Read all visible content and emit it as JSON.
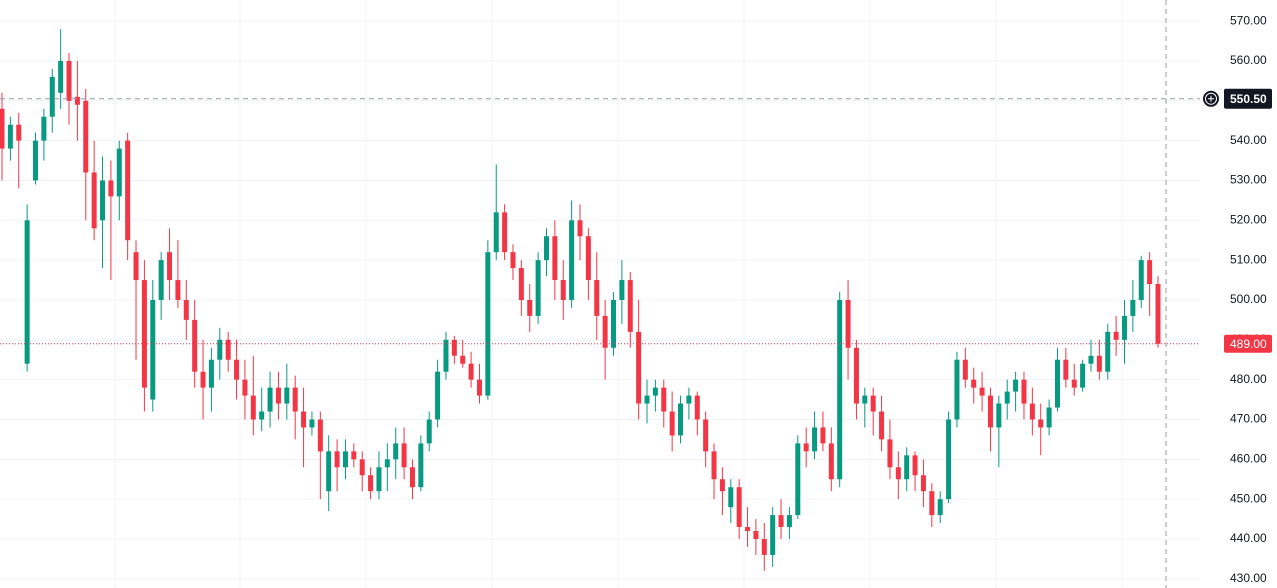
{
  "chart_data": {
    "type": "candlestick",
    "up_color": "#089981",
    "down_color": "#f23645",
    "open": [
      548,
      538,
      544,
      484,
      530,
      540,
      546,
      552,
      560,
      551,
      550,
      532,
      520,
      530,
      526,
      540,
      512,
      505,
      475,
      500,
      512,
      505,
      500,
      495,
      482,
      478,
      485,
      490,
      485,
      480,
      476,
      470,
      472,
      478,
      474,
      478,
      472,
      468,
      470,
      452,
      462,
      458,
      462,
      460,
      456,
      452,
      458,
      460,
      464,
      458,
      453,
      464,
      470,
      482,
      490,
      486,
      484,
      480,
      476,
      512,
      522,
      512,
      508,
      500,
      496,
      510,
      516,
      505,
      500,
      520,
      516,
      505,
      496,
      488,
      500,
      505,
      492,
      474,
      476,
      478,
      472,
      466,
      474,
      476,
      470,
      462,
      455,
      448,
      453,
      443,
      442,
      440,
      436,
      446,
      443,
      446,
      464,
      462,
      468,
      464,
      455,
      500,
      488,
      474,
      476,
      472,
      465,
      458,
      455,
      461,
      456,
      452,
      446,
      450,
      470,
      485,
      480,
      478,
      476,
      468,
      474,
      477,
      480,
      474,
      470,
      468,
      473,
      485,
      480,
      478,
      484,
      486,
      482,
      492,
      490,
      496,
      500,
      510,
      504
    ],
    "high": [
      552,
      546,
      547,
      524,
      542,
      548,
      558,
      568,
      562,
      560,
      553,
      540,
      536,
      535,
      540,
      542,
      515,
      510,
      505,
      512,
      518,
      515,
      505,
      500,
      490,
      488,
      493,
      492,
      490,
      485,
      486,
      478,
      482,
      482,
      484,
      481,
      478,
      472,
      472,
      466,
      465,
      465,
      464,
      462,
      458,
      462,
      464,
      468,
      468,
      460,
      466,
      472,
      485,
      492,
      491,
      490,
      487,
      484,
      515,
      534,
      524,
      514,
      510,
      504,
      512,
      518,
      520,
      510,
      525,
      524,
      518,
      512,
      500,
      502,
      510,
      507,
      500,
      480,
      480,
      480,
      477,
      476,
      478,
      477,
      472,
      464,
      458,
      455,
      455,
      448,
      445,
      444,
      448,
      450,
      448,
      466,
      468,
      472,
      472,
      468,
      502,
      505,
      490,
      478,
      478,
      476,
      470,
      462,
      463,
      462,
      460,
      454,
      452,
      472,
      487,
      488,
      483,
      482,
      478,
      476,
      480,
      482,
      482,
      478,
      474,
      475,
      488,
      488,
      484,
      485,
      490,
      490,
      494,
      496,
      500,
      505,
      511,
      512,
      506
    ],
    "low": [
      530,
      535,
      528,
      482,
      529,
      535,
      542,
      548,
      544,
      540,
      520,
      515,
      508,
      505,
      520,
      510,
      485,
      472,
      472,
      495,
      500,
      498,
      490,
      478,
      470,
      472,
      480,
      482,
      475,
      470,
      466,
      467,
      468,
      470,
      470,
      465,
      458,
      466,
      450,
      447,
      452,
      455,
      458,
      452,
      450,
      450,
      452,
      455,
      455,
      450,
      452,
      462,
      468,
      480,
      484,
      483,
      478,
      474,
      475,
      510,
      510,
      505,
      496,
      492,
      494,
      506,
      500,
      495,
      498,
      510,
      500,
      490,
      480,
      486,
      494,
      488,
      470,
      469,
      472,
      468,
      462,
      464,
      470,
      466,
      458,
      450,
      446,
      444,
      440,
      438,
      436,
      432,
      433,
      440,
      440,
      445,
      458,
      460,
      462,
      452,
      453,
      480,
      470,
      468,
      466,
      462,
      455,
      450,
      452,
      452,
      448,
      443,
      444,
      449,
      468,
      478,
      474,
      472,
      462,
      458,
      470,
      472,
      470,
      466,
      461,
      466,
      472,
      478,
      476,
      477,
      482,
      480,
      480,
      486,
      484,
      492,
      498,
      496,
      488
    ],
    "close": [
      538,
      544,
      540,
      520,
      540,
      546,
      556,
      560,
      550,
      549,
      532,
      518,
      530,
      526,
      538,
      515,
      505,
      478,
      500,
      510,
      505,
      500,
      495,
      482,
      478,
      485,
      490,
      485,
      480,
      476,
      470,
      472,
      478,
      474,
      478,
      472,
      468,
      470,
      462,
      462,
      458,
      462,
      460,
      456,
      452,
      458,
      460,
      464,
      458,
      453,
      464,
      470,
      482,
      490,
      486,
      484,
      480,
      476,
      512,
      522,
      512,
      508,
      500,
      496,
      510,
      516,
      505,
      500,
      520,
      516,
      505,
      496,
      488,
      500,
      505,
      492,
      474,
      476,
      478,
      472,
      466,
      474,
      476,
      470,
      462,
      455,
      452,
      453,
      443,
      442,
      440,
      436,
      446,
      443,
      446,
      464,
      462,
      468,
      464,
      455,
      500,
      488,
      474,
      476,
      472,
      465,
      458,
      455,
      461,
      456,
      452,
      446,
      450,
      470,
      485,
      480,
      478,
      476,
      468,
      474,
      477,
      480,
      474,
      470,
      468,
      473,
      485,
      480,
      478,
      484,
      486,
      482,
      492,
      490,
      496,
      500,
      510,
      504,
      489
    ],
    "ylim": [
      427.7,
      575.3
    ],
    "yticks": [
      {
        "value": 430,
        "label": "430.00"
      },
      {
        "value": 440,
        "label": "440.00"
      },
      {
        "value": 450,
        "label": "450.00"
      },
      {
        "value": 460,
        "label": "460.00"
      },
      {
        "value": 470,
        "label": "470.00"
      },
      {
        "value": 480,
        "label": "480.00"
      },
      {
        "value": 490,
        "label": "490.00"
      },
      {
        "value": 500,
        "label": "500.00"
      },
      {
        "value": 510,
        "label": "510.00"
      },
      {
        "value": 520,
        "label": "520.00"
      },
      {
        "value": 530,
        "label": "530.00"
      },
      {
        "value": 540,
        "label": "540.00"
      },
      {
        "value": 550,
        "label": "550.00"
      },
      {
        "value": 560,
        "label": "560.00"
      },
      {
        "value": 570,
        "label": "570.00"
      }
    ],
    "grid": true,
    "crosshair_price": {
      "value": 550.5,
      "label": "550.50"
    },
    "last_price": {
      "value": 489,
      "label": "489.00"
    }
  }
}
